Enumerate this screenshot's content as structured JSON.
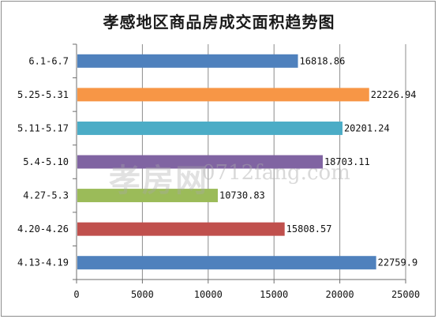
{
  "chart_data": {
    "type": "bar",
    "orientation": "horizontal",
    "title": "孝感地区商品房成交面积趋势图",
    "categories": [
      "6.1-6.7",
      "5.25-5.31",
      "5.11-5.17",
      "5.4-5.10",
      "4.27-5.3",
      "4.20-4.26",
      "4.13-4.19"
    ],
    "values": [
      16818.86,
      22226.94,
      20201.24,
      18703.11,
      10730.83,
      15808.57,
      22759.9
    ],
    "value_labels": [
      "16818.86",
      "22226.94",
      "20201.24",
      "18703.11",
      "10730.83",
      "15808.57",
      "22759.9"
    ],
    "colors": [
      "#4f81bd",
      "#f79646",
      "#4bacc6",
      "#8064a2",
      "#9bbb59",
      "#c0504d",
      "#4f81bd"
    ],
    "xlim": [
      0,
      25000
    ],
    "xticks": [
      0,
      5000,
      10000,
      15000,
      20000,
      25000
    ],
    "xtick_labels": [
      "0",
      "5000",
      "10000",
      "15000",
      "20000",
      "25000"
    ],
    "grid": true,
    "legend": "none"
  },
  "watermark": {
    "logo_text": "孝房网",
    "url": "0712fang.com"
  }
}
